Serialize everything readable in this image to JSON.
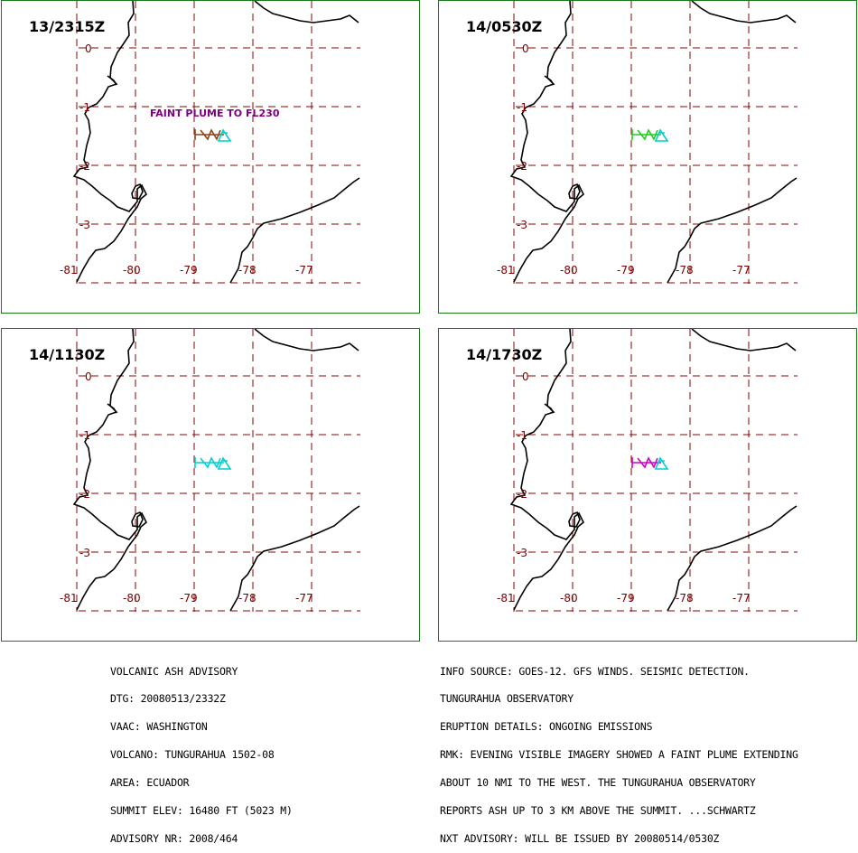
{
  "panels": [
    {
      "time": "13/2315Z",
      "plume_color": "#8b4513",
      "note": "FAINT PLUME TO FL230"
    },
    {
      "time": "14/0530Z",
      "plume_color": "#22cc22",
      "note": ""
    },
    {
      "time": "14/1130Z",
      "plume_color": "#00d0d0",
      "note": ""
    },
    {
      "time": "14/1730Z",
      "plume_color": "#cc00cc",
      "note": ""
    }
  ],
  "grid": {
    "lat_labels": [
      "0",
      "-1",
      "-2",
      "-3"
    ],
    "lon_labels": [
      "-81",
      "-80",
      "-79",
      "-78",
      "-77"
    ]
  },
  "volcano_marker_color": "#00d0d0",
  "advisory_left": [
    "VOLCANIC ASH ADVISORY",
    "DTG: 20080513/2332Z",
    "VAAC: WASHINGTON",
    "VOLCANO: TUNGURAHUA 1502-08",
    "AREA: ECUADOR",
    "SUMMIT ELEV: 16480 FT (5023 M)",
    "ADVISORY NR: 2008/464"
  ],
  "advisory_right": [
    "INFO SOURCE: GOES-12. GFS WINDS. SEISMIC DETECTION.",
    "TUNGURAHUA OBSERVATORY",
    "ERUPTION DETAILS: ONGOING EMISSIONS",
    "RMK: EVENING VISIBLE IMAGERY SHOWED A FAINT PLUME EXTENDING",
    "ABOUT 10 NMI TO THE WEST. THE TUNGURAHUA OBSERVATORY",
    "REPORTS ASH UP TO 3 KM ABOVE THE SUMMIT. ...SCHWARTZ",
    "NXT ADVISORY: WILL BE ISSUED BY 20080514/0530Z"
  ]
}
